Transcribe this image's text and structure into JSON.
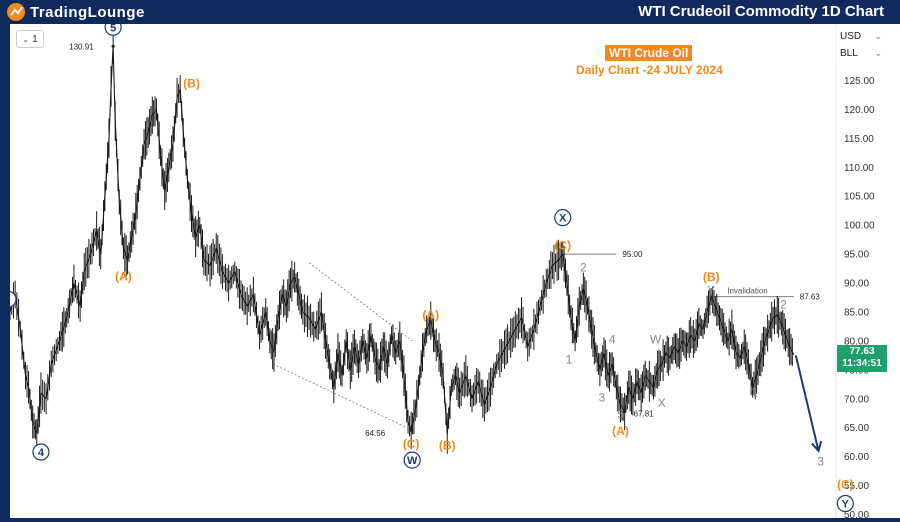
{
  "header": {
    "logo_text": "TradingLounge",
    "title": "WTI Crudeoil Commodity 1D Chart"
  },
  "toolbar": {
    "interval_value": "1",
    "currency": "USD",
    "unit": "BLL"
  },
  "annotation": {
    "title": "WTI Crude Oil",
    "subtitle": "Daily Chart -24 JULY 2024"
  },
  "price_tag": {
    "price": "77.63",
    "countdown": "11:34:51"
  },
  "colors": {
    "brand_bg": "#102a5e",
    "accent_orange": "#f08a1c",
    "wave_navy": "#1f3a6e",
    "gray_label": "#888888",
    "price_green": "#1f9e6e"
  },
  "chart_data": {
    "type": "line",
    "title": "WTI Crude Oil",
    "subtitle": "Daily Chart -24 JULY 2024",
    "y_axis_side": "right",
    "ylim": [
      50,
      130
    ],
    "y_ticks": [
      "125.00",
      "120.00",
      "115.00",
      "110.00",
      "105.00",
      "100.00",
      "95.00",
      "90.00",
      "85.00",
      "80.00",
      "75.00",
      "70.00",
      "65.00",
      "60.00",
      "55.00",
      "50.00"
    ],
    "price_series": [
      {
        "i": 0,
        "y": 85
      },
      {
        "i": 5,
        "y": 88
      },
      {
        "i": 10,
        "y": 82
      },
      {
        "i": 15,
        "y": 74
      },
      {
        "i": 18,
        "y": 72
      },
      {
        "i": 22,
        "y": 66
      },
      {
        "i": 26,
        "y": 64
      },
      {
        "i": 30,
        "y": 71
      },
      {
        "i": 35,
        "y": 70
      },
      {
        "i": 40,
        "y": 76
      },
      {
        "i": 48,
        "y": 80
      },
      {
        "i": 55,
        "y": 84
      },
      {
        "i": 62,
        "y": 90
      },
      {
        "i": 68,
        "y": 86
      },
      {
        "i": 72,
        "y": 92
      },
      {
        "i": 78,
        "y": 95
      },
      {
        "i": 84,
        "y": 99
      },
      {
        "i": 88,
        "y": 95
      },
      {
        "i": 92,
        "y": 105
      },
      {
        "i": 96,
        "y": 115
      },
      {
        "i": 98,
        "y": 124
      },
      {
        "i": 100,
        "y": 130.9
      },
      {
        "i": 102,
        "y": 118
      },
      {
        "i": 106,
        "y": 104
      },
      {
        "i": 110,
        "y": 96
      },
      {
        "i": 114,
        "y": 94
      },
      {
        "i": 118,
        "y": 98
      },
      {
        "i": 122,
        "y": 102
      },
      {
        "i": 126,
        "y": 108
      },
      {
        "i": 130,
        "y": 114
      },
      {
        "i": 134,
        "y": 116
      },
      {
        "i": 138,
        "y": 119
      },
      {
        "i": 142,
        "y": 120
      },
      {
        "i": 146,
        "y": 112
      },
      {
        "i": 150,
        "y": 106
      },
      {
        "i": 154,
        "y": 110
      },
      {
        "i": 158,
        "y": 114
      },
      {
        "i": 162,
        "y": 122
      },
      {
        "i": 165,
        "y": 123.5
      },
      {
        "i": 168,
        "y": 116
      },
      {
        "i": 172,
        "y": 108
      },
      {
        "i": 176,
        "y": 102
      },
      {
        "i": 180,
        "y": 98
      },
      {
        "i": 184,
        "y": 100
      },
      {
        "i": 188,
        "y": 94
      },
      {
        "i": 194,
        "y": 93
      },
      {
        "i": 200,
        "y": 96
      },
      {
        "i": 206,
        "y": 92
      },
      {
        "i": 212,
        "y": 90
      },
      {
        "i": 218,
        "y": 92
      },
      {
        "i": 224,
        "y": 88
      },
      {
        "i": 230,
        "y": 86
      },
      {
        "i": 236,
        "y": 88
      },
      {
        "i": 242,
        "y": 81
      },
      {
        "i": 248,
        "y": 85
      },
      {
        "i": 252,
        "y": 80
      },
      {
        "i": 256,
        "y": 78
      },
      {
        "i": 260,
        "y": 84
      },
      {
        "i": 264,
        "y": 88
      },
      {
        "i": 268,
        "y": 86
      },
      {
        "i": 272,
        "y": 90
      },
      {
        "i": 276,
        "y": 91
      },
      {
        "i": 280,
        "y": 88
      },
      {
        "i": 284,
        "y": 85
      },
      {
        "i": 290,
        "y": 84
      },
      {
        "i": 296,
        "y": 82
      },
      {
        "i": 302,
        "y": 85
      },
      {
        "i": 306,
        "y": 80
      },
      {
        "i": 310,
        "y": 76
      },
      {
        "i": 314,
        "y": 72
      },
      {
        "i": 318,
        "y": 78
      },
      {
        "i": 322,
        "y": 74
      },
      {
        "i": 326,
        "y": 80
      },
      {
        "i": 330,
        "y": 75
      },
      {
        "i": 334,
        "y": 79
      },
      {
        "i": 338,
        "y": 76
      },
      {
        "i": 342,
        "y": 80
      },
      {
        "i": 346,
        "y": 77
      },
      {
        "i": 350,
        "y": 81
      },
      {
        "i": 354,
        "y": 77
      },
      {
        "i": 358,
        "y": 75
      },
      {
        "i": 362,
        "y": 79
      },
      {
        "i": 366,
        "y": 76
      },
      {
        "i": 370,
        "y": 81
      },
      {
        "i": 374,
        "y": 78
      },
      {
        "i": 378,
        "y": 80
      },
      {
        "i": 382,
        "y": 74
      },
      {
        "i": 386,
        "y": 66
      },
      {
        "i": 389,
        "y": 64.56
      },
      {
        "i": 393,
        "y": 68
      },
      {
        "i": 396,
        "y": 72
      },
      {
        "i": 400,
        "y": 78
      },
      {
        "i": 404,
        "y": 82
      },
      {
        "i": 408,
        "y": 83.5
      },
      {
        "i": 412,
        "y": 80
      },
      {
        "i": 416,
        "y": 78
      },
      {
        "i": 420,
        "y": 74
      },
      {
        "i": 424,
        "y": 64
      },
      {
        "i": 428,
        "y": 72
      },
      {
        "i": 432,
        "y": 74
      },
      {
        "i": 436,
        "y": 71
      },
      {
        "i": 442,
        "y": 74
      },
      {
        "i": 448,
        "y": 70
      },
      {
        "i": 454,
        "y": 73
      },
      {
        "i": 460,
        "y": 69
      },
      {
        "i": 466,
        "y": 72
      },
      {
        "i": 472,
        "y": 76
      },
      {
        "i": 478,
        "y": 78
      },
      {
        "i": 484,
        "y": 80
      },
      {
        "i": 490,
        "y": 82
      },
      {
        "i": 496,
        "y": 84
      },
      {
        "i": 502,
        "y": 79
      },
      {
        "i": 508,
        "y": 82
      },
      {
        "i": 514,
        "y": 86
      },
      {
        "i": 520,
        "y": 90
      },
      {
        "i": 526,
        "y": 93
      },
      {
        "i": 532,
        "y": 94
      },
      {
        "i": 536,
        "y": 95
      },
      {
        "i": 540,
        "y": 90
      },
      {
        "i": 544,
        "y": 84
      },
      {
        "i": 548,
        "y": 80
      },
      {
        "i": 552,
        "y": 86
      },
      {
        "i": 556,
        "y": 89
      },
      {
        "i": 560,
        "y": 86
      },
      {
        "i": 564,
        "y": 82
      },
      {
        "i": 568,
        "y": 78
      },
      {
        "i": 572,
        "y": 75
      },
      {
        "i": 576,
        "y": 78
      },
      {
        "i": 580,
        "y": 74
      },
      {
        "i": 584,
        "y": 76
      },
      {
        "i": 588,
        "y": 72
      },
      {
        "i": 592,
        "y": 69
      },
      {
        "i": 596,
        "y": 67.81
      },
      {
        "i": 600,
        "y": 72
      },
      {
        "i": 604,
        "y": 70
      },
      {
        "i": 608,
        "y": 73
      },
      {
        "i": 612,
        "y": 71
      },
      {
        "i": 616,
        "y": 74
      },
      {
        "i": 620,
        "y": 73
      },
      {
        "i": 624,
        "y": 72
      },
      {
        "i": 628,
        "y": 75
      },
      {
        "i": 632,
        "y": 76
      },
      {
        "i": 636,
        "y": 78
      },
      {
        "i": 640,
        "y": 77
      },
      {
        "i": 644,
        "y": 79
      },
      {
        "i": 648,
        "y": 78
      },
      {
        "i": 652,
        "y": 80
      },
      {
        "i": 656,
        "y": 79
      },
      {
        "i": 660,
        "y": 81
      },
      {
        "i": 664,
        "y": 80
      },
      {
        "i": 668,
        "y": 83
      },
      {
        "i": 672,
        "y": 82
      },
      {
        "i": 676,
        "y": 85
      },
      {
        "i": 680,
        "y": 87.63
      },
      {
        "i": 684,
        "y": 86
      },
      {
        "i": 688,
        "y": 84
      },
      {
        "i": 692,
        "y": 82
      },
      {
        "i": 696,
        "y": 80
      },
      {
        "i": 700,
        "y": 82
      },
      {
        "i": 704,
        "y": 78
      },
      {
        "i": 708,
        "y": 77
      },
      {
        "i": 712,
        "y": 79
      },
      {
        "i": 716,
        "y": 76
      },
      {
        "i": 720,
        "y": 72
      },
      {
        "i": 724,
        "y": 74
      },
      {
        "i": 728,
        "y": 77
      },
      {
        "i": 732,
        "y": 80
      },
      {
        "i": 736,
        "y": 82
      },
      {
        "i": 740,
        "y": 84
      },
      {
        "i": 744,
        "y": 84.5
      },
      {
        "i": 748,
        "y": 83
      },
      {
        "i": 752,
        "y": 81
      },
      {
        "i": 756,
        "y": 79
      },
      {
        "i": 760,
        "y": 77.63
      }
    ],
    "projection": {
      "from": {
        "i": 762,
        "y": 77.5
      },
      "to": {
        "i": 784,
        "y": 61
      }
    },
    "price_labels": [
      {
        "text": "130.91",
        "i": 100,
        "y": 130.91
      },
      {
        "text": "95.00",
        "i": 536,
        "y": 95.0
      },
      {
        "text": "87.63",
        "i": 680,
        "y": 87.63
      },
      {
        "text": "64.56",
        "i": 389,
        "y": 64.56
      },
      {
        "text": "67.81",
        "i": 596,
        "y": 67.81
      }
    ],
    "reference_lines": [
      {
        "y": 95.0,
        "from_i": 536,
        "to_i": 588,
        "label": "95.00"
      },
      {
        "y": 87.63,
        "from_i": 680,
        "to_i": 760,
        "label": "Invalidation",
        "value_label": "87.63"
      }
    ],
    "channel_lines": [
      {
        "from": {
          "i": 290,
          "y": 93.5
        },
        "to": {
          "i": 390,
          "y": 80
        }
      },
      {
        "from": {
          "i": 255,
          "y": 76
        },
        "to": {
          "i": 385,
          "y": 65
        }
      }
    ],
    "wave_labels": [
      {
        "text": "5",
        "style": "circle-navy",
        "i": 100,
        "y": 134.2
      },
      {
        "text": "4",
        "style": "circle-navy",
        "i": 30,
        "y": 60.8
      },
      {
        "text": "W",
        "style": "circle-navy",
        "i": 390,
        "y": 59.4
      },
      {
        "text": "X",
        "style": "circle-navy",
        "i": 536,
        "y": 101.3
      },
      {
        "text": "Y",
        "style": "circle-navy",
        "i": 810,
        "y": 51.9
      },
      {
        "text": "(B)",
        "style": "orange",
        "i": 176,
        "y": 124.5
      },
      {
        "text": "(A)",
        "style": "orange",
        "i": 110,
        "y": 91.1
      },
      {
        "text": "(C)",
        "style": "orange",
        "i": 389,
        "y": 62.2
      },
      {
        "text": "(A)",
        "style": "orange",
        "i": 408,
        "y": 84.5
      },
      {
        "text": "(B)",
        "style": "orange",
        "i": 424,
        "y": 61.9
      },
      {
        "text": "(C)",
        "style": "orange",
        "i": 536,
        "y": 96.5
      },
      {
        "text": "(B)",
        "style": "orange",
        "i": 680,
        "y": 91.0
      },
      {
        "text": "(A)",
        "style": "orange",
        "i": 592,
        "y": 64.4
      },
      {
        "text": "(C)",
        "style": "orange",
        "i": 810,
        "y": 55.2
      },
      {
        "text": "2",
        "style": "gray",
        "i": 556,
        "y": 92.7
      },
      {
        "text": "1",
        "style": "gray",
        "i": 542,
        "y": 76.8
      },
      {
        "text": "4",
        "style": "gray",
        "i": 584,
        "y": 80.2
      },
      {
        "text": "3",
        "style": "gray",
        "i": 574,
        "y": 70.2
      },
      {
        "text": "5",
        "style": "gray",
        "i": 592,
        "y": 67.4
      },
      {
        "text": "W",
        "style": "gray",
        "i": 626,
        "y": 80.2
      },
      {
        "text": "X",
        "style": "gray",
        "i": 632,
        "y": 69.3
      },
      {
        "text": "Y",
        "style": "gray",
        "i": 680,
        "y": 88.7
      },
      {
        "text": "2",
        "style": "gray",
        "i": 750,
        "y": 86.3
      },
      {
        "text": "1",
        "style": "gray",
        "i": 722,
        "y": 71.1
      },
      {
        "text": "3",
        "style": "gray",
        "i": 786,
        "y": 59.2
      }
    ],
    "edge_labels": [
      {
        "text": "(partial circle)",
        "style": "circle-navy-edge",
        "i": 0,
        "y": 87.2
      }
    ],
    "xlabel": "",
    "ylabel": "",
    "grid": false,
    "legend": "none"
  }
}
